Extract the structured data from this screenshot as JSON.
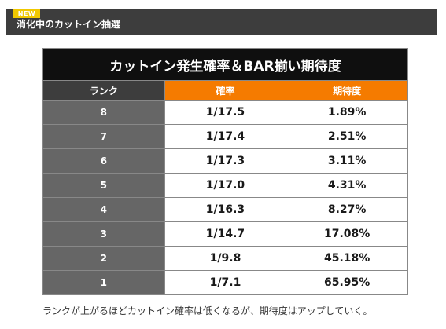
{
  "header": {
    "badge": "NEW",
    "section_title": "消化中のカットイン抽選"
  },
  "table": {
    "title": "カットイン発生確率＆BAR揃い期待度",
    "columns": [
      "ランク",
      "確率",
      "期待度"
    ],
    "rows": [
      {
        "rank": "8",
        "prob": "1/17.5",
        "expect": "1.89%"
      },
      {
        "rank": "7",
        "prob": "1/17.4",
        "expect": "2.51%"
      },
      {
        "rank": "6",
        "prob": "1/17.3",
        "expect": "3.11%"
      },
      {
        "rank": "5",
        "prob": "1/17.0",
        "expect": "4.31%"
      },
      {
        "rank": "4",
        "prob": "1/16.3",
        "expect": "8.27%"
      },
      {
        "rank": "3",
        "prob": "1/14.7",
        "expect": "17.08%"
      },
      {
        "rank": "2",
        "prob": "1/9.8",
        "expect": "45.18%"
      },
      {
        "rank": "1",
        "prob": "1/7.1",
        "expect": "65.95%"
      }
    ]
  },
  "note": "ランクが上がるほどカットイン確率は低くなるが、期待度はアップしていく。",
  "colors": {
    "header_bar": "#3d3d3d",
    "badge": "#f0c800",
    "table_title_bg": "#0f0f0f",
    "accent_orange": "#f57b00",
    "rank_cell": "#666666"
  }
}
